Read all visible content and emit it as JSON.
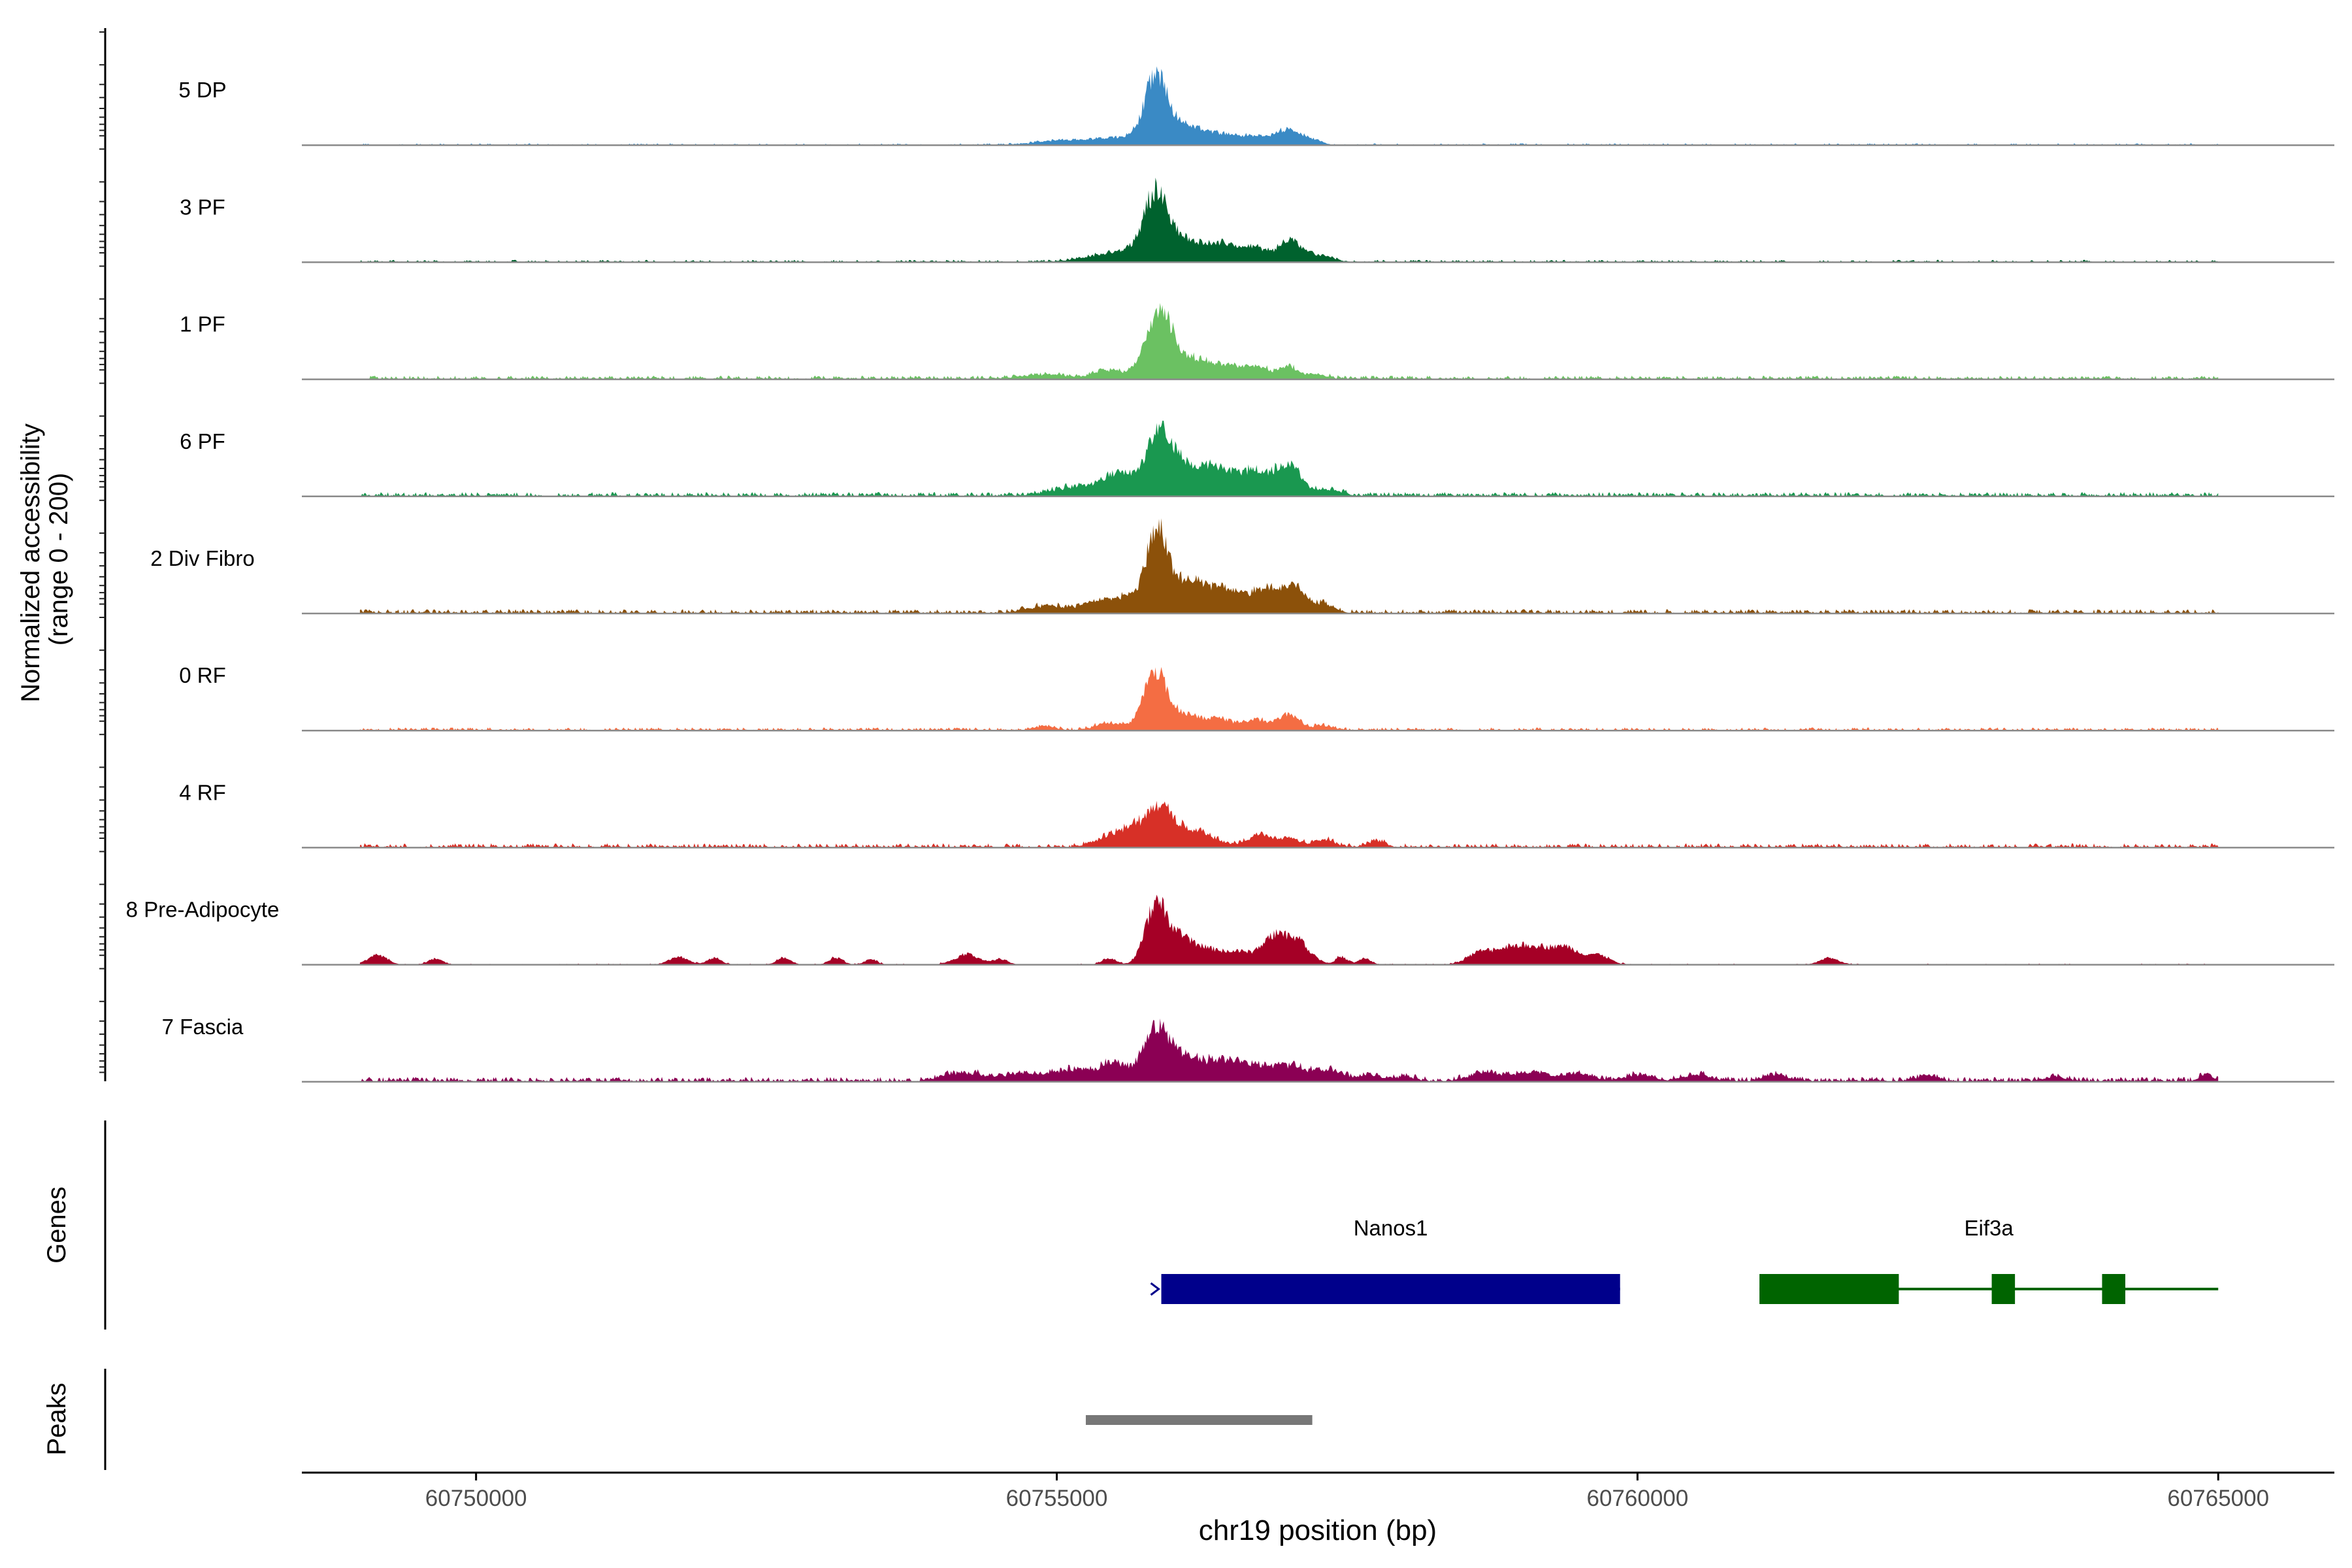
{
  "chart_data": {
    "type": "area",
    "subtype": "genome-coverage-track",
    "ylabel_line1": "Normalized accessibility",
    "ylabel_line2": "(range 0 - 200)",
    "y_range": [
      0,
      200
    ],
    "xlabel": "chr19 position (bp)",
    "x_range": [
      60748500,
      60766000
    ],
    "x_ticks": [
      {
        "value": 60750000,
        "label": "60750000"
      },
      {
        "value": 60755000,
        "label": "60755000"
      },
      {
        "value": 60760000,
        "label": "60760000"
      },
      {
        "value": 60765000,
        "label": "60765000"
      }
    ],
    "tracks": [
      {
        "name": "5 DP",
        "color": "#3a8ac5",
        "noise": 1.5,
        "noiseDensity": 0.35,
        "peaks": [
          [
            60754920,
            140,
            5
          ],
          [
            60755450,
            300,
            12
          ],
          [
            60755850,
            90,
            96
          ],
          [
            60756050,
            220,
            38
          ],
          [
            60756480,
            120,
            12
          ],
          [
            60756750,
            150,
            14
          ],
          [
            60757000,
            90,
            24
          ],
          [
            60757200,
            80,
            10
          ]
        ]
      },
      {
        "name": "3 PF",
        "color": "#00622e",
        "noise": 2,
        "noiseDensity": 0.4,
        "peaks": [
          [
            60755550,
            250,
            18
          ],
          [
            60755850,
            100,
            102
          ],
          [
            60756120,
            200,
            40
          ],
          [
            60756450,
            90,
            22
          ],
          [
            60756700,
            110,
            26
          ],
          [
            60757000,
            90,
            40
          ],
          [
            60757250,
            120,
            12
          ]
        ]
      },
      {
        "name": "1 PF",
        "color": "#6bc162",
        "noise": 3,
        "noiseDensity": 0.55,
        "peaks": [
          [
            60754900,
            200,
            8
          ],
          [
            60755450,
            120,
            14
          ],
          [
            60755880,
            110,
            96
          ],
          [
            60756130,
            250,
            35
          ],
          [
            60756560,
            140,
            12
          ],
          [
            60756750,
            120,
            14
          ],
          [
            60757000,
            80,
            20
          ],
          [
            60757250,
            80,
            8
          ]
        ]
      },
      {
        "name": "6 PF",
        "color": "#1a9850",
        "noise": 3.5,
        "noiseDensity": 0.6,
        "peaks": [
          [
            60755250,
            250,
            18
          ],
          [
            60755550,
            120,
            30
          ],
          [
            60755880,
            110,
            92
          ],
          [
            60756150,
            230,
            48
          ],
          [
            60756500,
            160,
            28
          ],
          [
            60756750,
            110,
            30
          ],
          [
            60757000,
            110,
            52
          ],
          [
            60757350,
            100,
            12
          ]
        ]
      },
      {
        "name": "2 Div Fibro",
        "color": "#8c510a",
        "noise": 3.5,
        "noiseDensity": 0.65,
        "peaks": [
          [
            60754900,
            150,
            12
          ],
          [
            60755350,
            140,
            20
          ],
          [
            60755620,
            120,
            24
          ],
          [
            60755860,
            85,
            126
          ],
          [
            60756120,
            200,
            56
          ],
          [
            60756500,
            150,
            30
          ],
          [
            60756800,
            110,
            40
          ],
          [
            60757050,
            100,
            44
          ],
          [
            60757300,
            90,
            14
          ]
        ]
      },
      {
        "name": "0 RF",
        "color": "#f46d43",
        "noise": 2.5,
        "noiseDensity": 0.55,
        "peaks": [
          [
            60754900,
            80,
            8
          ],
          [
            60755450,
            120,
            12
          ],
          [
            60755840,
            90,
            92
          ],
          [
            60756050,
            200,
            30
          ],
          [
            60756400,
            100,
            14
          ],
          [
            60756700,
            120,
            18
          ],
          [
            60757000,
            90,
            26
          ],
          [
            60757300,
            80,
            8
          ]
        ]
      },
      {
        "name": "4 RF",
        "color": "#d73027",
        "noise": 3.5,
        "noiseDensity": 0.5,
        "peaks": [
          [
            60755450,
            120,
            18
          ],
          [
            60755650,
            100,
            26
          ],
          [
            60755880,
            110,
            62
          ],
          [
            60756150,
            200,
            28
          ],
          [
            60756750,
            90,
            22
          ],
          [
            60757000,
            90,
            18
          ],
          [
            60757300,
            80,
            14
          ],
          [
            60757750,
            80,
            10
          ]
        ]
      },
      {
        "name": "8 Pre-Adipocyte",
        "color": "#a50026",
        "noise": 1,
        "noiseDensity": 0.2,
        "peaks": [
          [
            60749150,
            80,
            18
          ],
          [
            60749650,
            60,
            10
          ],
          [
            60751750,
            80,
            14
          ],
          [
            60752050,
            60,
            12
          ],
          [
            60752650,
            60,
            12
          ],
          [
            60753100,
            60,
            12
          ],
          [
            60753400,
            50,
            10
          ],
          [
            60754230,
            110,
            18
          ],
          [
            60754520,
            60,
            10
          ],
          [
            60755450,
            60,
            12
          ],
          [
            60755850,
            90,
            96
          ],
          [
            60756050,
            130,
            48
          ],
          [
            60756350,
            130,
            24
          ],
          [
            60756600,
            100,
            18
          ],
          [
            60756850,
            100,
            40
          ],
          [
            60757050,
            120,
            44
          ],
          [
            60757450,
            50,
            14
          ],
          [
            60757650,
            50,
            12
          ],
          [
            60758650,
            110,
            22
          ],
          [
            60758900,
            120,
            24
          ],
          [
            60759150,
            150,
            30
          ],
          [
            60759400,
            100,
            24
          ],
          [
            60759650,
            100,
            18
          ],
          [
            60761650,
            80,
            12
          ]
        ]
      },
      {
        "name": "7 Fascia",
        "color": "#8b0054",
        "noise": 4,
        "noiseDensity": 0.65,
        "peaks": [
          [
            60754200,
            180,
            14
          ],
          [
            60754700,
            160,
            12
          ],
          [
            60755150,
            180,
            20
          ],
          [
            60755500,
            120,
            28
          ],
          [
            60755850,
            110,
            76
          ],
          [
            60756100,
            200,
            40
          ],
          [
            60756500,
            150,
            30
          ],
          [
            60756800,
            120,
            24
          ],
          [
            60757050,
            110,
            24
          ],
          [
            60757350,
            120,
            18
          ],
          [
            60757700,
            100,
            10
          ],
          [
            60758000,
            90,
            8
          ],
          [
            60758700,
            150,
            14
          ],
          [
            60759100,
            150,
            14
          ],
          [
            60759500,
            120,
            12
          ],
          [
            60760000,
            120,
            10
          ],
          [
            60760500,
            120,
            12
          ],
          [
            60761200,
            90,
            12
          ],
          [
            60762500,
            80,
            10
          ],
          [
            60763600,
            80,
            8
          ],
          [
            60764900,
            70,
            10
          ]
        ]
      }
    ],
    "genes_label": "Genes",
    "genes": [
      {
        "name": "Nanos1",
        "color": "#00008b",
        "strand": "+",
        "start": 60755900,
        "end": 60759850,
        "exons": [
          [
            60755900,
            60759850
          ]
        ]
      },
      {
        "name": "Eif3a",
        "color": "#006400",
        "strand": "-",
        "start": 60761050,
        "end": 60765000,
        "exons": [
          [
            60761050,
            60762250
          ],
          [
            60763050,
            60763250
          ],
          [
            60764000,
            60764200
          ]
        ]
      }
    ],
    "peaks_label": "Peaks",
    "peak_regions": [
      {
        "start": 60755250,
        "end": 60757200,
        "color": "#777777"
      }
    ]
  }
}
